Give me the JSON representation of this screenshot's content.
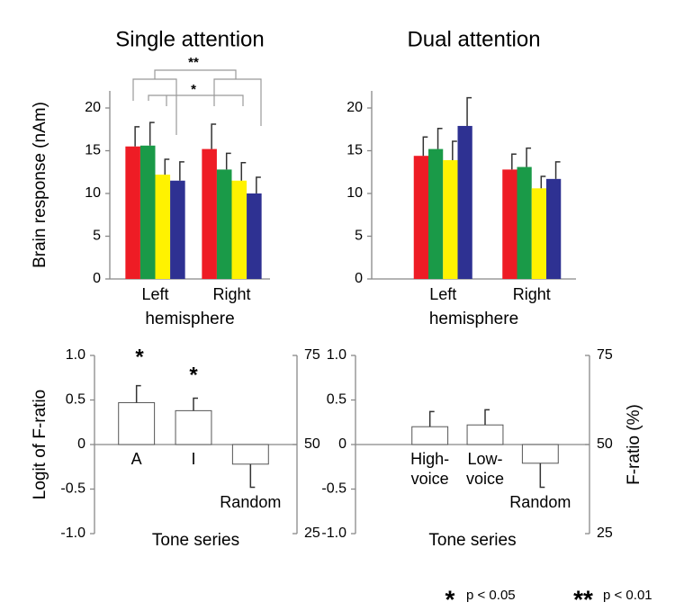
{
  "chart_data": [
    {
      "type": "bar",
      "title": "Single attention",
      "ylabel": "Brain response (nAm)",
      "xlabel": "hemisphere",
      "categories": [
        "Left",
        "Right"
      ],
      "series": [
        {
          "color": "#ee1c25",
          "values": [
            15.5,
            15.2
          ],
          "errors": [
            2.3,
            2.9
          ]
        },
        {
          "color": "#1a9a48",
          "values": [
            15.6,
            12.8
          ],
          "errors": [
            2.7,
            1.9
          ]
        },
        {
          "color": "#fff200",
          "values": [
            12.2,
            11.5
          ],
          "errors": [
            1.8,
            2.1
          ]
        },
        {
          "color": "#2e3192",
          "values": [
            11.5,
            10.0
          ],
          "errors": [
            2.2,
            1.9
          ]
        }
      ],
      "ylim": [
        0,
        22
      ],
      "yticks": [
        0,
        5,
        10,
        15,
        20
      ],
      "annotations": [
        "**",
        "*"
      ]
    },
    {
      "type": "bar",
      "title": "Dual attention",
      "xlabel": "hemisphere",
      "categories": [
        "Left",
        "Right"
      ],
      "series": [
        {
          "color": "#ee1c25",
          "values": [
            14.4,
            12.8
          ],
          "errors": [
            2.2,
            1.8
          ]
        },
        {
          "color": "#1a9a48",
          "values": [
            15.2,
            13.1
          ],
          "errors": [
            2.4,
            2.2
          ]
        },
        {
          "color": "#fff200",
          "values": [
            13.9,
            10.6
          ],
          "errors": [
            2.2,
            1.4
          ]
        },
        {
          "color": "#2e3192",
          "values": [
            17.9,
            11.7
          ],
          "errors": [
            3.3,
            2.0
          ]
        }
      ],
      "ylim": [
        0,
        22
      ],
      "yticks": [
        0,
        5,
        10,
        15,
        20
      ]
    },
    {
      "type": "bar",
      "ylabel": "Logit of F-ratio",
      "xlabel": "Tone series",
      "categories": [
        "A",
        "I",
        "Random"
      ],
      "series": [
        {
          "color": "#ffffff",
          "values": [
            0.47,
            0.38,
            -0.22
          ],
          "errors": [
            0.19,
            0.14,
            0.26
          ]
        }
      ],
      "ylim": [
        -1,
        1
      ],
      "yticks": [
        {
          "value": 1,
          "label": "1.0"
        },
        0.5,
        0,
        -0.5,
        {
          "value": -1,
          "label": "-1.0"
        }
      ],
      "y2lim": [
        25,
        75
      ],
      "y2ticks": [
        25,
        50,
        75
      ],
      "annotations": [
        "*",
        "*"
      ]
    },
    {
      "type": "bar",
      "xlabel": "Tone series",
      "y2label": "F-ratio (%)",
      "categories": [
        "High-voice",
        "Low-voice",
        "Random"
      ],
      "series": [
        {
          "color": "#ffffff",
          "values": [
            0.2,
            0.22,
            -0.21
          ],
          "errors": [
            0.17,
            0.17,
            0.27
          ]
        }
      ],
      "ylim": [
        -1,
        1
      ],
      "yticks": [
        {
          "value": 1,
          "label": "1.0"
        },
        0.5,
        0,
        -0.5,
        {
          "value": -1,
          "label": "-1.0"
        }
      ],
      "y2lim": [
        25,
        75
      ],
      "y2ticks": [
        25,
        50,
        75
      ]
    }
  ],
  "footnotes": [
    {
      "symbol": "*",
      "text": "p < 0.05"
    },
    {
      "symbol": "**",
      "text": "p < 0.01"
    }
  ]
}
